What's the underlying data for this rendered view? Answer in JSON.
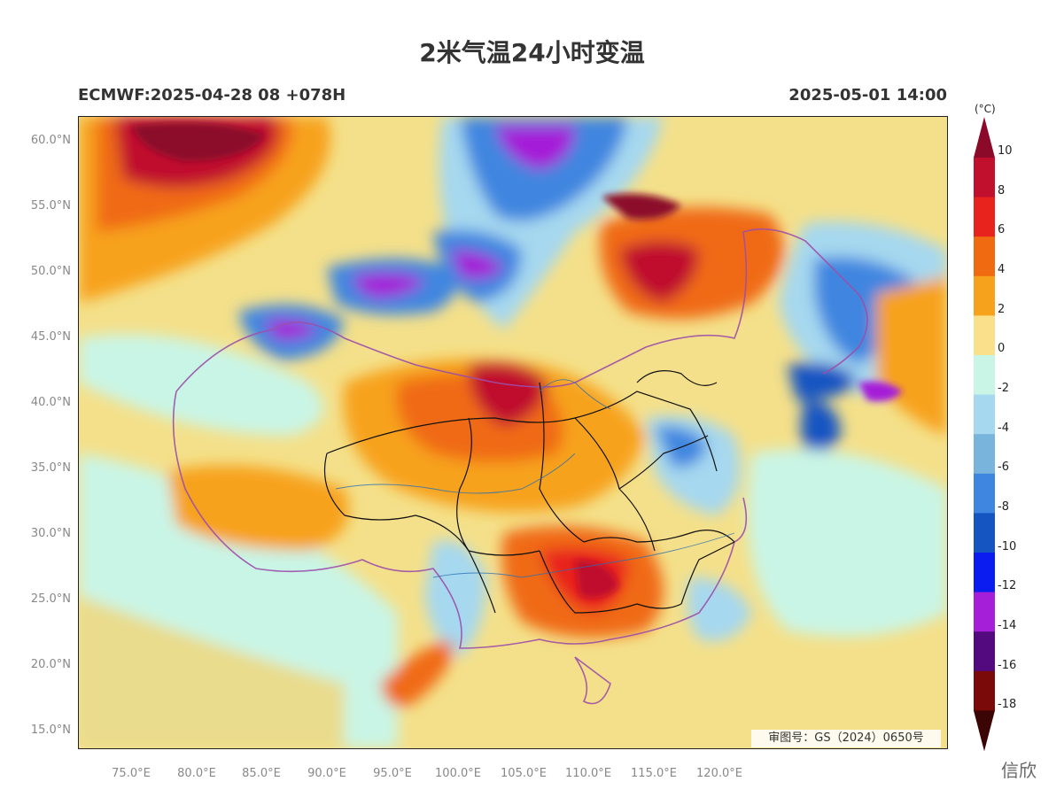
{
  "header": {
    "title": "2米气温24小时变温",
    "model_run": "ECMWF:2025-04-28 08 +078H",
    "valid_time": "2025-05-01 14:00"
  },
  "axes": {
    "lat_labels": [
      "60.0°N",
      "55.0°N",
      "50.0°N",
      "45.0°N",
      "40.0°N",
      "35.0°N",
      "30.0°N",
      "25.0°N",
      "20.0°N",
      "15.0°N"
    ],
    "lon_labels": [
      "75.0°E",
      "80.0°E",
      "85.0°E",
      "90.0°E",
      "95.0°E",
      "100.0°E",
      "105.0°E",
      "110.0°E",
      "115.0°E",
      "120.0°E"
    ]
  },
  "colorbar": {
    "unit": "(°C)",
    "labels": [
      "10",
      "8",
      "6",
      "4",
      "2",
      "0",
      "-2",
      "-4",
      "-6",
      "-8",
      "-10",
      "-12",
      "-14",
      "-16",
      "-18"
    ],
    "colors": [
      "#8b0a2a",
      "#c0102e",
      "#e8231e",
      "#f06a12",
      "#f7a21c",
      "#fbe08c",
      "#c9f5e6",
      "#a6d8ef",
      "#78b4dc",
      "#3f86e0",
      "#1455c2",
      "#0b1cf0",
      "#a51ed8",
      "#520a7e",
      "#7a0a0a",
      "#3c0505"
    ]
  },
  "approval_number": "审图号：GS（2024）0650号",
  "watermark": "信欣"
}
